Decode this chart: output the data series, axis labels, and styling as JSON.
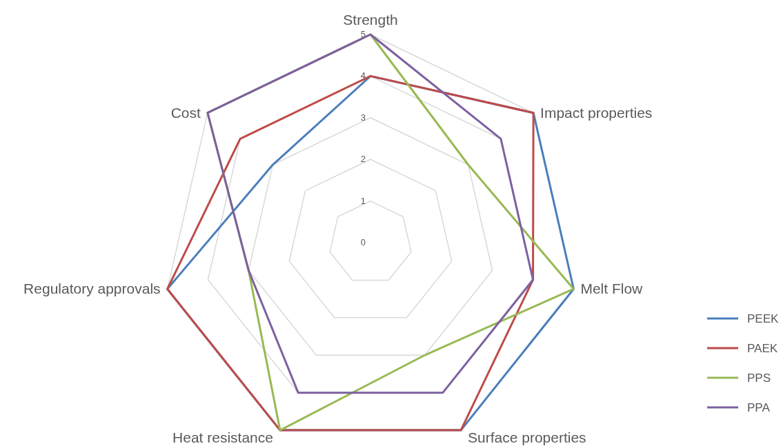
{
  "chart_data": {
    "type": "radar",
    "categories": [
      "Strength",
      "Impact properties",
      "Melt Flow",
      "Surface properties",
      "Heat resistance",
      "Regulatory approvals",
      "Cost"
    ],
    "series": [
      {
        "name": "PEEK",
        "color": "#4a7ebb",
        "values": [
          4,
          5,
          5,
          5,
          5,
          5,
          3
        ]
      },
      {
        "name": "PAEK",
        "color": "#be4b48",
        "values": [
          4,
          5,
          4,
          5,
          5,
          5,
          4
        ]
      },
      {
        "name": "PPS",
        "color": "#98b954",
        "values": [
          5,
          3,
          5,
          3,
          5,
          3,
          5
        ]
      },
      {
        "name": "PPA",
        "color": "#7d60a0",
        "values": [
          5,
          4,
          4,
          4,
          4,
          3,
          5
        ]
      }
    ],
    "ylim": [
      0,
      5
    ],
    "yticks": [
      0,
      1,
      2,
      3,
      4,
      5
    ],
    "grid": true,
    "legend": "right"
  }
}
